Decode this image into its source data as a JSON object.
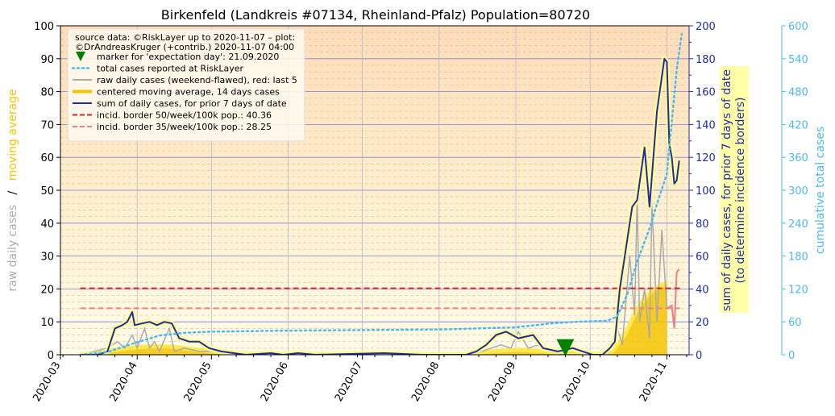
{
  "chart_data": {
    "type": "line",
    "title": "Birkenfeld (Landkreis #07134, Rheinland-Pfalz) Population=80720",
    "ylabel_left_parts": [
      "raw daily cases",
      "/",
      "moving average"
    ],
    "ylabel_right1_lines": [
      "sum of daily cases, for prior 7 days of date",
      "(to determine incidence borders)"
    ],
    "ylabel_right2": "cumulative total cases",
    "axes": {
      "left": {
        "min": 0,
        "max": 100,
        "ticks": [
          "0",
          "10",
          "20",
          "30",
          "40",
          "50",
          "60",
          "70",
          "80",
          "90",
          "100"
        ]
      },
      "right1": {
        "min": 0,
        "max": 200,
        "ticks": [
          "0",
          "20",
          "40",
          "60",
          "80",
          "100",
          "120",
          "140",
          "160",
          "180",
          "200"
        ]
      },
      "right2": {
        "min": 0,
        "max": 600,
        "ticks": [
          "0",
          "60",
          "120",
          "180",
          "240",
          "300",
          "360",
          "420",
          "480",
          "540",
          "600"
        ]
      },
      "x_ticks": [
        "2020-03",
        "2020-04",
        "2020-05",
        "2020-06",
        "2020-07",
        "2020-08",
        "2020-09",
        "2020-10",
        "2020-11"
      ]
    },
    "legend": {
      "position": "top-left",
      "source_lines": [
        "source data: ©RiskLayer up to 2020-11-07 – plot:",
        "©DrAndreasKruger (+contrib.) 2020-11-07 04:00"
      ],
      "entries": [
        {
          "key": "marker",
          "label": "marker for 'expectation day': 21.09.2020",
          "color": "#008000"
        },
        {
          "key": "total",
          "label": "total cases reported at RiskLayer",
          "color": "#4db8f0"
        },
        {
          "key": "raw",
          "label": "raw daily cases (weekend-flawed), red: last 5",
          "color": "#aaaaaa"
        },
        {
          "key": "avg",
          "label": "centered moving average, 14 days cases",
          "color": "#f5c400"
        },
        {
          "key": "sum7",
          "label": "sum of daily cases, for prior 7 days of date",
          "color": "#1f2aa8"
        },
        {
          "key": "b50",
          "label": "incid. border 50/week/100k pop.: 40.36",
          "color": "#d62728"
        },
        {
          "key": "b35",
          "label": "incid. border 35/week/100k pop.: 28.25",
          "color": "#f08080"
        }
      ]
    },
    "expectation_day": "2020-09-21",
    "incidence_border_50": 40.36,
    "incidence_border_35": 28.25,
    "series": {
      "sum7": [
        [
          "2020-03-09",
          0
        ],
        [
          "2020-03-16",
          0
        ],
        [
          "2020-03-20",
          2
        ],
        [
          "2020-03-23",
          16
        ],
        [
          "2020-03-26",
          18
        ],
        [
          "2020-03-28",
          20
        ],
        [
          "2020-03-30",
          26
        ],
        [
          "2020-03-31",
          18
        ],
        [
          "2020-04-03",
          19
        ],
        [
          "2020-04-06",
          20
        ],
        [
          "2020-04-09",
          18
        ],
        [
          "2020-04-12",
          20
        ],
        [
          "2020-04-15",
          19
        ],
        [
          "2020-04-18",
          10
        ],
        [
          "2020-04-22",
          8
        ],
        [
          "2020-04-26",
          8
        ],
        [
          "2020-04-30",
          4
        ],
        [
          "2020-05-05",
          2
        ],
        [
          "2020-05-10",
          1
        ],
        [
          "2020-05-15",
          0
        ],
        [
          "2020-05-25",
          1
        ],
        [
          "2020-05-30",
          0
        ],
        [
          "2020-06-05",
          1
        ],
        [
          "2020-06-12",
          0
        ],
        [
          "2020-07-10",
          1
        ],
        [
          "2020-07-25",
          0
        ],
        [
          "2020-08-12",
          0
        ],
        [
          "2020-08-16",
          2
        ],
        [
          "2020-08-20",
          6
        ],
        [
          "2020-08-24",
          12
        ],
        [
          "2020-08-28",
          14
        ],
        [
          "2020-09-02",
          10
        ],
        [
          "2020-09-08",
          12
        ],
        [
          "2020-09-12",
          4
        ],
        [
          "2020-09-18",
          2
        ],
        [
          "2020-09-24",
          4
        ],
        [
          "2020-09-28",
          2
        ],
        [
          "2020-10-02",
          0
        ],
        [
          "2020-10-06",
          0
        ],
        [
          "2020-10-09",
          4
        ],
        [
          "2020-10-11",
          8
        ],
        [
          "2020-10-13",
          40
        ],
        [
          "2020-10-15",
          60
        ],
        [
          "2020-10-18",
          90
        ],
        [
          "2020-10-20",
          94
        ],
        [
          "2020-10-23",
          126
        ],
        [
          "2020-10-25",
          90
        ],
        [
          "2020-10-28",
          148
        ],
        [
          "2020-10-31",
          180
        ],
        [
          "2020-11-01",
          178
        ],
        [
          "2020-11-02",
          128
        ],
        [
          "2020-11-03",
          120
        ],
        [
          "2020-11-04",
          104
        ],
        [
          "2020-11-05",
          106
        ],
        [
          "2020-11-06",
          118
        ]
      ],
      "avg": [
        [
          "2020-03-09",
          0
        ],
        [
          "2020-03-20",
          1
        ],
        [
          "2020-03-28",
          2
        ],
        [
          "2020-04-06",
          2.5
        ],
        [
          "2020-04-15",
          2.5
        ],
        [
          "2020-04-25",
          1.5
        ],
        [
          "2020-05-05",
          0.8
        ],
        [
          "2020-05-15",
          0.3
        ],
        [
          "2020-06-01",
          0.2
        ],
        [
          "2020-07-01",
          0.2
        ],
        [
          "2020-08-12",
          0.2
        ],
        [
          "2020-08-22",
          1
        ],
        [
          "2020-09-02",
          1.5
        ],
        [
          "2020-09-12",
          1
        ],
        [
          "2020-09-22",
          0.5
        ],
        [
          "2020-10-05",
          0.3
        ],
        [
          "2020-10-10",
          1
        ],
        [
          "2020-10-15",
          6
        ],
        [
          "2020-10-20",
          14
        ],
        [
          "2020-10-24",
          18
        ],
        [
          "2020-10-27",
          20
        ],
        [
          "2020-10-30",
          21
        ],
        [
          "2020-11-01",
          22
        ]
      ],
      "raw": [
        [
          "2020-03-09",
          0
        ],
        [
          "2020-03-20",
          2
        ],
        [
          "2020-03-24",
          4
        ],
        [
          "2020-03-27",
          2
        ],
        [
          "2020-03-30",
          6
        ],
        [
          "2020-04-01",
          2
        ],
        [
          "2020-04-04",
          8
        ],
        [
          "2020-04-06",
          2
        ],
        [
          "2020-04-08",
          4
        ],
        [
          "2020-04-10",
          1
        ],
        [
          "2020-04-14",
          8
        ],
        [
          "2020-04-16",
          1
        ],
        [
          "2020-04-20",
          2
        ],
        [
          "2020-04-26",
          1
        ],
        [
          "2020-05-04",
          1
        ],
        [
          "2020-05-12",
          0
        ],
        [
          "2020-06-10",
          0
        ],
        [
          "2020-08-14",
          0
        ],
        [
          "2020-08-22",
          2
        ],
        [
          "2020-08-26",
          3
        ],
        [
          "2020-08-30",
          2
        ],
        [
          "2020-09-02",
          7
        ],
        [
          "2020-09-06",
          2
        ],
        [
          "2020-09-10",
          3
        ],
        [
          "2020-09-14",
          1
        ],
        [
          "2020-09-20",
          0
        ],
        [
          "2020-10-08",
          0
        ],
        [
          "2020-10-10",
          4
        ],
        [
          "2020-10-12",
          8
        ],
        [
          "2020-10-14",
          3
        ],
        [
          "2020-10-17",
          30
        ],
        [
          "2020-10-19",
          12
        ],
        [
          "2020-10-20",
          48
        ],
        [
          "2020-10-21",
          10
        ],
        [
          "2020-10-23",
          20
        ],
        [
          "2020-10-25",
          5
        ],
        [
          "2020-10-26",
          46
        ],
        [
          "2020-10-28",
          10
        ],
        [
          "2020-10-30",
          38
        ],
        [
          "2020-11-01",
          14
        ]
      ],
      "raw_last5": [
        [
          "2020-11-01",
          14
        ],
        [
          "2020-11-03",
          15
        ],
        [
          "2020-11-04",
          8
        ],
        [
          "2020-11-05",
          25
        ],
        [
          "2020-11-06",
          26
        ]
      ],
      "total": [
        [
          "2020-03-09",
          0
        ],
        [
          "2020-03-20",
          5
        ],
        [
          "2020-03-30",
          20
        ],
        [
          "2020-04-10",
          35
        ],
        [
          "2020-04-20",
          40
        ],
        [
          "2020-05-01",
          42
        ],
        [
          "2020-06-01",
          44
        ],
        [
          "2020-07-01",
          45
        ],
        [
          "2020-08-01",
          46
        ],
        [
          "2020-09-01",
          50
        ],
        [
          "2020-09-15",
          57
        ],
        [
          "2020-09-25",
          60
        ],
        [
          "2020-10-08",
          62
        ],
        [
          "2020-10-12",
          70
        ],
        [
          "2020-10-16",
          110
        ],
        [
          "2020-10-20",
          170
        ],
        [
          "2020-10-25",
          230
        ],
        [
          "2020-10-28",
          275
        ],
        [
          "2020-11-01",
          330
        ],
        [
          "2020-11-05",
          520
        ],
        [
          "2020-11-07",
          585
        ]
      ]
    }
  }
}
